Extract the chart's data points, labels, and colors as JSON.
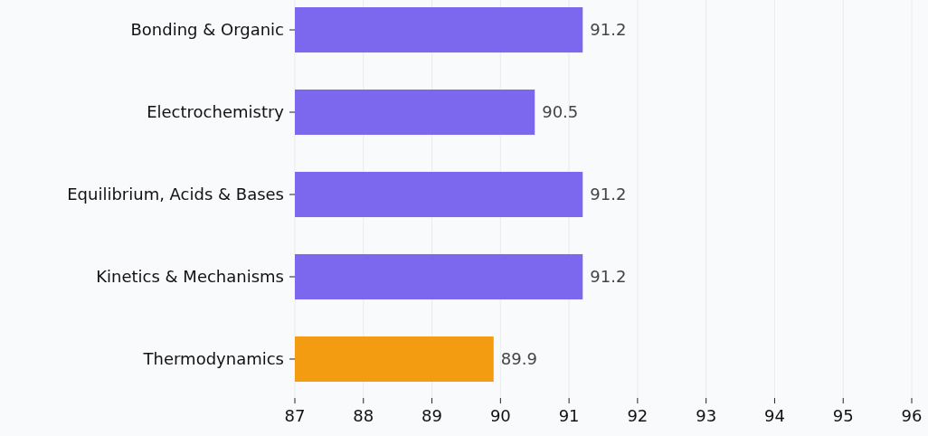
{
  "chart_data": {
    "type": "bar",
    "orientation": "horizontal",
    "categories": [
      "Bonding & Organic",
      "Electrochemistry",
      "Equilibrium, Acids & Bases",
      "Kinetics & Mechanisms",
      "Thermodynamics"
    ],
    "values": [
      91.2,
      90.5,
      91.2,
      91.2,
      89.9
    ],
    "colors": [
      "#7b68ee",
      "#7b68ee",
      "#7b68ee",
      "#7b68ee",
      "#f39c12"
    ],
    "xlim": [
      87,
      96
    ],
    "xticks": [
      87,
      88,
      89,
      90,
      91,
      92,
      93,
      94,
      95,
      96
    ],
    "grid": "x",
    "data_labels": true
  }
}
